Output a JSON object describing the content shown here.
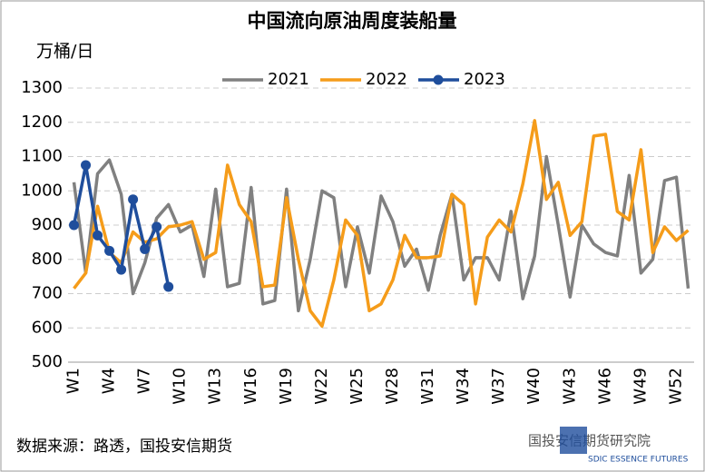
{
  "chart_data": {
    "type": "line",
    "title": "中国流向原油周度装船量",
    "y_axis_label": "万桶/日",
    "source": "数据来源：路透，国投安信期货",
    "watermark": "国投安信期货研究院",
    "logo_text": "SDIC ESSENCE FUTURES",
    "categories": [
      "W1",
      null,
      null,
      "W4",
      null,
      null,
      "W7",
      null,
      null,
      "W10",
      null,
      null,
      "W13",
      null,
      null,
      "W16",
      null,
      null,
      "W19",
      null,
      null,
      "W22",
      null,
      null,
      "W25",
      null,
      null,
      "W28",
      null,
      null,
      "W31",
      null,
      null,
      "W34",
      null,
      null,
      "W37",
      null,
      null,
      "W40",
      null,
      null,
      "W43",
      null,
      null,
      "W46",
      null,
      null,
      "W49",
      null,
      null,
      "W52",
      null
    ],
    "series": [
      {
        "name": "2021",
        "color": "#808080",
        "marker": false,
        "values": [
          1025,
          760,
          1050,
          1090,
          990,
          700,
          790,
          920,
          960,
          880,
          900,
          750,
          1005,
          720,
          730,
          1010,
          670,
          680,
          1005,
          650,
          800,
          1000,
          980,
          720,
          895,
          760,
          985,
          910,
          780,
          830,
          710,
          870,
          990,
          740,
          805,
          805,
          740,
          940,
          685,
          810,
          1100,
          900,
          690,
          900,
          845,
          820,
          810,
          1045,
          760,
          800,
          1030,
          1040,
          715
        ]
      },
      {
        "name": "2022",
        "color": "#f59c1a",
        "marker": false,
        "values": [
          715,
          760,
          955,
          820,
          790,
          880,
          850,
          860,
          895,
          900,
          910,
          800,
          820,
          1075,
          960,
          910,
          720,
          725,
          980,
          800,
          650,
          605,
          740,
          915,
          870,
          650,
          670,
          740,
          870,
          805,
          805,
          810,
          990,
          960,
          670,
          865,
          915,
          880,
          1020,
          1205,
          975,
          1025,
          870,
          910,
          1160,
          1165,
          940,
          915,
          1120,
          820,
          895,
          855,
          885
        ]
      },
      {
        "name": "2023",
        "color": "#1f4e9c",
        "marker": true,
        "values": [
          900,
          1075,
          870,
          825,
          770,
          975,
          830,
          895,
          720,
          null,
          null,
          null,
          null,
          null,
          null,
          null,
          null,
          null,
          null,
          null,
          null,
          null,
          null,
          null,
          null,
          null,
          null,
          null,
          null,
          null,
          null,
          null,
          null,
          null,
          null,
          null,
          null,
          null,
          null,
          null,
          null,
          null,
          null,
          null,
          null,
          null,
          null,
          null,
          null,
          null,
          null,
          null,
          null
        ]
      }
    ],
    "ylim": [
      500,
      1300
    ],
    "yticks": [
      500,
      600,
      700,
      800,
      900,
      1000,
      1100,
      1200,
      1300
    ],
    "grid": true,
    "legend": "top"
  }
}
